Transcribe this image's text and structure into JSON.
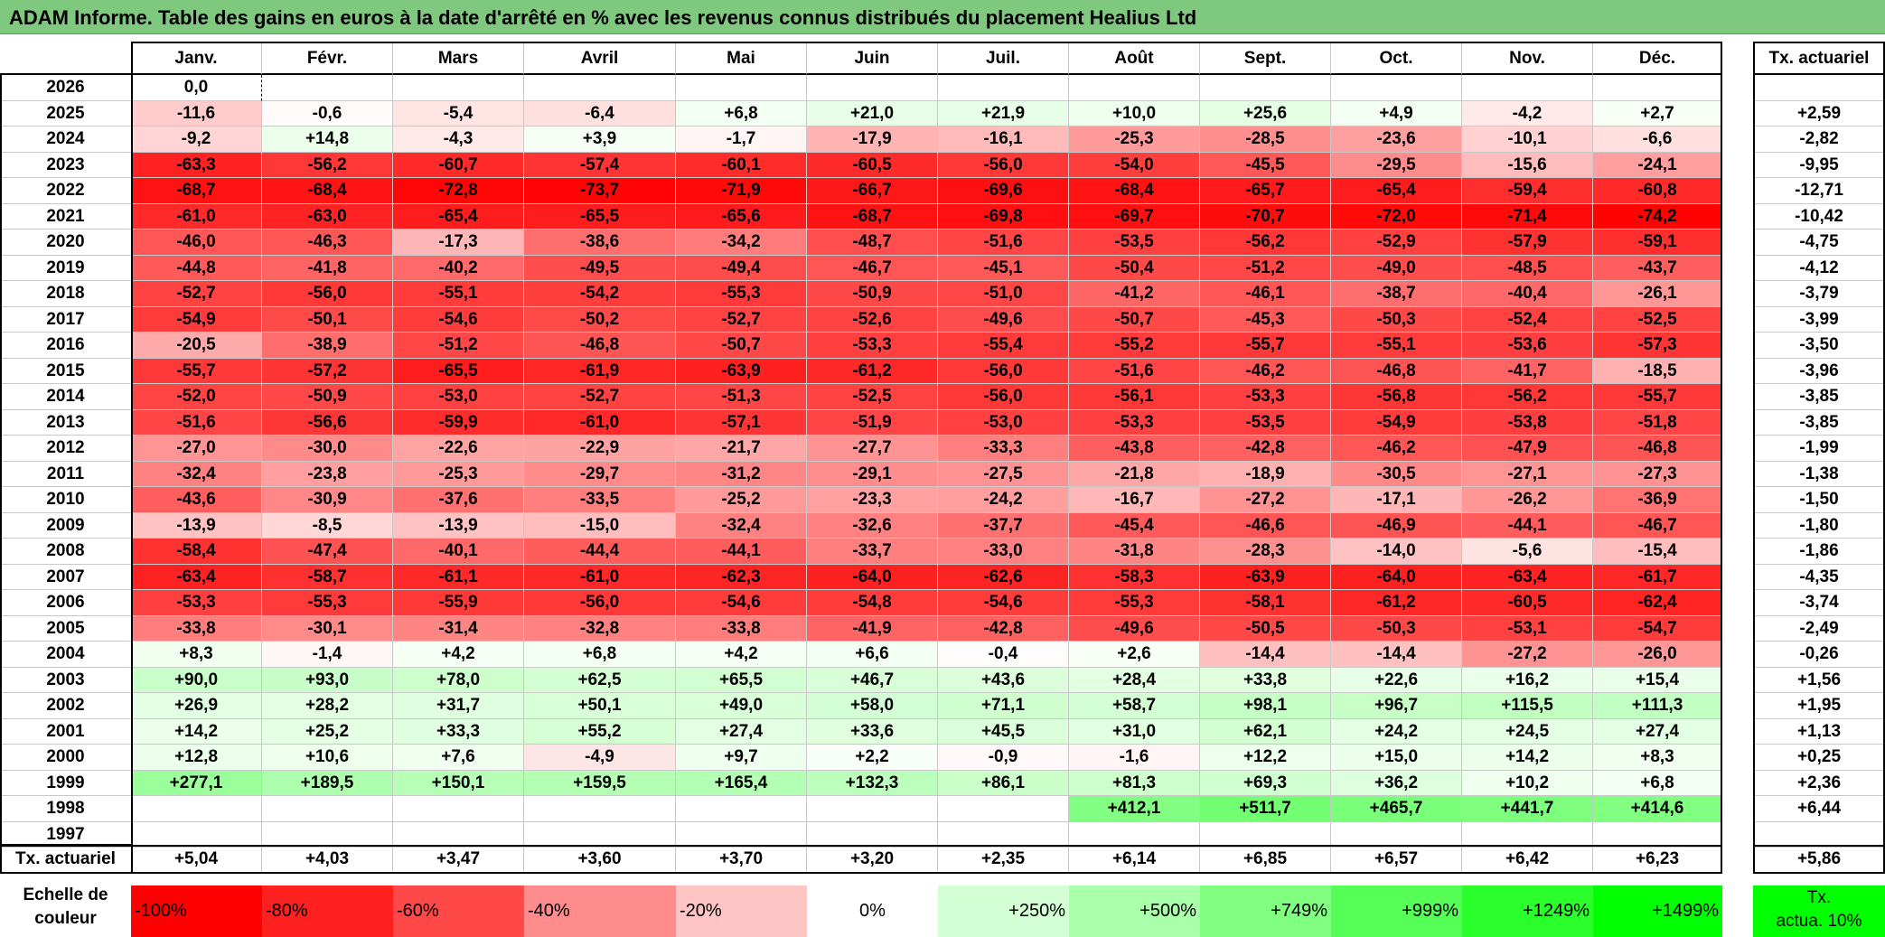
{
  "title": "ADAM Informe. Table des gains en euros à la date d'arrêté en % avec les revenus connus distribués du placement Healius Ltd",
  "months": [
    "Janv.",
    "Févr.",
    "Mars",
    "Avril",
    "Mai",
    "Juin",
    "Juil.",
    "Août",
    "Sept.",
    "Oct.",
    "Nov.",
    "Déc."
  ],
  "annual_header": "Tx. actuariel",
  "rows": [
    {
      "year": "2026",
      "values": [
        "0,0",
        "",
        "",
        "",
        "",
        "",
        "",
        "",
        "",
        "",
        "",
        ""
      ],
      "annual": ""
    },
    {
      "year": "2025",
      "values": [
        "-11,6",
        "-0,6",
        "-5,4",
        "-6,4",
        "+6,8",
        "+21,0",
        "+21,9",
        "+10,0",
        "+25,6",
        "+4,9",
        "-4,2",
        "+2,7"
      ],
      "annual": "+2,59"
    },
    {
      "year": "2024",
      "values": [
        "-9,2",
        "+14,8",
        "-4,3",
        "+3,9",
        "-1,7",
        "-17,9",
        "-16,1",
        "-25,3",
        "-28,5",
        "-23,6",
        "-10,1",
        "-6,6"
      ],
      "annual": "-2,82"
    },
    {
      "year": "2023",
      "values": [
        "-63,3",
        "-56,2",
        "-60,7",
        "-57,4",
        "-60,1",
        "-60,5",
        "-56,0",
        "-54,0",
        "-45,5",
        "-29,5",
        "-15,6",
        "-24,1"
      ],
      "annual": "-9,95"
    },
    {
      "year": "2022",
      "values": [
        "-68,7",
        "-68,4",
        "-72,8",
        "-73,7",
        "-71,9",
        "-66,7",
        "-69,6",
        "-68,4",
        "-65,7",
        "-65,4",
        "-59,4",
        "-60,8"
      ],
      "annual": "-12,71"
    },
    {
      "year": "2021",
      "values": [
        "-61,0",
        "-63,0",
        "-65,4",
        "-65,5",
        "-65,6",
        "-68,7",
        "-69,8",
        "-69,7",
        "-70,7",
        "-72,0",
        "-71,4",
        "-74,2"
      ],
      "annual": "-10,42"
    },
    {
      "year": "2020",
      "values": [
        "-46,0",
        "-46,3",
        "-17,3",
        "-38,6",
        "-34,2",
        "-48,7",
        "-51,6",
        "-53,5",
        "-56,2",
        "-52,9",
        "-57,9",
        "-59,1"
      ],
      "annual": "-4,75"
    },
    {
      "year": "2019",
      "values": [
        "-44,8",
        "-41,8",
        "-40,2",
        "-49,5",
        "-49,4",
        "-46,7",
        "-45,1",
        "-50,4",
        "-51,2",
        "-49,0",
        "-48,5",
        "-43,7"
      ],
      "annual": "-4,12"
    },
    {
      "year": "2018",
      "values": [
        "-52,7",
        "-56,0",
        "-55,1",
        "-54,2",
        "-55,3",
        "-50,9",
        "-51,0",
        "-41,2",
        "-46,1",
        "-38,7",
        "-40,4",
        "-26,1"
      ],
      "annual": "-3,79"
    },
    {
      "year": "2017",
      "values": [
        "-54,9",
        "-50,1",
        "-54,6",
        "-50,2",
        "-52,7",
        "-52,6",
        "-49,6",
        "-50,7",
        "-45,3",
        "-50,3",
        "-52,4",
        "-52,5"
      ],
      "annual": "-3,99"
    },
    {
      "year": "2016",
      "values": [
        "-20,5",
        "-38,9",
        "-51,2",
        "-46,8",
        "-50,7",
        "-53,3",
        "-55,4",
        "-55,2",
        "-55,7",
        "-55,1",
        "-53,6",
        "-57,3"
      ],
      "annual": "-3,50"
    },
    {
      "year": "2015",
      "values": [
        "-55,7",
        "-57,2",
        "-65,5",
        "-61,9",
        "-63,9",
        "-61,2",
        "-56,0",
        "-51,6",
        "-46,2",
        "-46,8",
        "-41,7",
        "-18,5"
      ],
      "annual": "-3,96"
    },
    {
      "year": "2014",
      "values": [
        "-52,0",
        "-50,9",
        "-53,0",
        "-52,7",
        "-51,3",
        "-52,5",
        "-56,0",
        "-56,1",
        "-53,3",
        "-56,8",
        "-56,2",
        "-55,7"
      ],
      "annual": "-3,85"
    },
    {
      "year": "2013",
      "values": [
        "-51,6",
        "-56,6",
        "-59,9",
        "-61,0",
        "-57,1",
        "-51,9",
        "-53,0",
        "-53,3",
        "-53,5",
        "-54,9",
        "-53,8",
        "-51,8"
      ],
      "annual": "-3,85"
    },
    {
      "year": "2012",
      "values": [
        "-27,0",
        "-30,0",
        "-22,6",
        "-22,9",
        "-21,7",
        "-27,7",
        "-33,3",
        "-43,8",
        "-42,8",
        "-46,2",
        "-47,9",
        "-46,8"
      ],
      "annual": "-1,99"
    },
    {
      "year": "2011",
      "values": [
        "-32,4",
        "-23,8",
        "-25,3",
        "-29,7",
        "-31,2",
        "-29,1",
        "-27,5",
        "-21,8",
        "-18,9",
        "-30,5",
        "-27,1",
        "-27,3"
      ],
      "annual": "-1,38"
    },
    {
      "year": "2010",
      "values": [
        "-43,6",
        "-30,9",
        "-37,6",
        "-33,5",
        "-25,2",
        "-23,3",
        "-24,2",
        "-16,7",
        "-27,2",
        "-17,1",
        "-26,2",
        "-36,9"
      ],
      "annual": "-1,50"
    },
    {
      "year": "2009",
      "values": [
        "-13,9",
        "-8,5",
        "-13,9",
        "-15,0",
        "-32,4",
        "-32,6",
        "-37,7",
        "-45,4",
        "-46,6",
        "-46,9",
        "-44,1",
        "-46,7"
      ],
      "annual": "-1,80"
    },
    {
      "year": "2008",
      "values": [
        "-58,4",
        "-47,4",
        "-40,1",
        "-44,4",
        "-44,1",
        "-33,7",
        "-33,0",
        "-31,8",
        "-28,3",
        "-14,0",
        "-5,6",
        "-15,4"
      ],
      "annual": "-1,86"
    },
    {
      "year": "2007",
      "values": [
        "-63,4",
        "-58,7",
        "-61,1",
        "-61,0",
        "-62,3",
        "-64,0",
        "-62,6",
        "-58,3",
        "-63,9",
        "-64,0",
        "-63,4",
        "-61,7"
      ],
      "annual": "-4,35"
    },
    {
      "year": "2006",
      "values": [
        "-53,3",
        "-55,3",
        "-55,9",
        "-56,0",
        "-54,6",
        "-54,8",
        "-54,6",
        "-55,3",
        "-58,1",
        "-61,2",
        "-60,5",
        "-62,4"
      ],
      "annual": "-3,74"
    },
    {
      "year": "2005",
      "values": [
        "-33,8",
        "-30,1",
        "-31,4",
        "-32,8",
        "-33,8",
        "-41,9",
        "-42,8",
        "-49,6",
        "-50,5",
        "-50,3",
        "-53,1",
        "-54,7"
      ],
      "annual": "-2,49"
    },
    {
      "year": "2004",
      "values": [
        "+8,3",
        "-1,4",
        "+4,2",
        "+6,8",
        "+4,2",
        "+6,6",
        "-0,4",
        "+2,6",
        "-14,4",
        "-14,4",
        "-27,2",
        "-26,0"
      ],
      "annual": "-0,26"
    },
    {
      "year": "2003",
      "values": [
        "+90,0",
        "+93,0",
        "+78,0",
        "+62,5",
        "+65,5",
        "+46,7",
        "+43,6",
        "+28,4",
        "+33,8",
        "+22,6",
        "+16,2",
        "+15,4"
      ],
      "annual": "+1,56"
    },
    {
      "year": "2002",
      "values": [
        "+26,9",
        "+28,2",
        "+31,7",
        "+50,1",
        "+49,0",
        "+58,0",
        "+71,1",
        "+58,7",
        "+98,1",
        "+96,7",
        "+115,5",
        "+111,3"
      ],
      "annual": "+1,95"
    },
    {
      "year": "2001",
      "values": [
        "+14,2",
        "+25,2",
        "+33,3",
        "+55,2",
        "+27,4",
        "+33,6",
        "+45,5",
        "+31,0",
        "+62,1",
        "+24,2",
        "+24,5",
        "+27,4"
      ],
      "annual": "+1,13"
    },
    {
      "year": "2000",
      "values": [
        "+12,8",
        "+10,6",
        "+7,6",
        "-4,9",
        "+9,7",
        "+2,2",
        "-0,9",
        "-1,6",
        "+12,2",
        "+15,0",
        "+14,2",
        "+8,3"
      ],
      "annual": "+0,25"
    },
    {
      "year": "1999",
      "values": [
        "+277,1",
        "+189,5",
        "+150,1",
        "+159,5",
        "+165,4",
        "+132,3",
        "+86,1",
        "+81,3",
        "+69,3",
        "+36,2",
        "+10,2",
        "+6,8"
      ],
      "annual": "+2,36"
    },
    {
      "year": "1998",
      "values": [
        "",
        "",
        "",
        "",
        "",
        "",
        "",
        "+412,1",
        "+511,7",
        "+465,7",
        "+441,7",
        "+414,6"
      ],
      "annual": "+6,44"
    },
    {
      "year": "1997",
      "values": [
        "",
        "",
        "",
        "",
        "",
        "",
        "",
        "",
        "",
        "",
        "",
        ""
      ],
      "annual": ""
    }
  ],
  "footer": {
    "label": "Tx. actuariel",
    "values": [
      "+5,04",
      "+4,03",
      "+3,47",
      "+3,60",
      "+3,70",
      "+3,20",
      "+2,35",
      "+6,14",
      "+6,85",
      "+6,57",
      "+6,42",
      "+6,23"
    ],
    "annual": "+5,86"
  },
  "legend": {
    "label_line1": "Echelle de",
    "label_line2": "couleur",
    "items": [
      {
        "text": "-100%",
        "color": "#ff0000",
        "align": "left"
      },
      {
        "text": "-80%",
        "color": "#ff2020",
        "align": "left"
      },
      {
        "text": "-60%",
        "color": "#ff4848",
        "align": "left"
      },
      {
        "text": "-40%",
        "color": "#ff8c8c",
        "align": "left"
      },
      {
        "text": "-20%",
        "color": "#ffc4c4",
        "align": "left"
      },
      {
        "text": "0%",
        "color": "#ffffff",
        "align": "center"
      },
      {
        "text": "+250%",
        "color": "#d4ffd4",
        "align": "right"
      },
      {
        "text": "+500%",
        "color": "#aaffaa",
        "align": "right"
      },
      {
        "text": "+749%",
        "color": "#80ff80",
        "align": "right"
      },
      {
        "text": "+999%",
        "color": "#55ff55",
        "align": "right"
      },
      {
        "text": "+1249%",
        "color": "#2bff2b",
        "align": "right"
      },
      {
        "text": "+1499%",
        "color": "#00ff00",
        "align": "right"
      }
    ],
    "annual_line1": "Tx.",
    "annual_line2": "actua. 10%",
    "annual_color": "#00ff00"
  },
  "colors": {
    "title_bg": "#7fc97f",
    "neg_full": "#ff0000",
    "pos_full": "#00ff00"
  }
}
